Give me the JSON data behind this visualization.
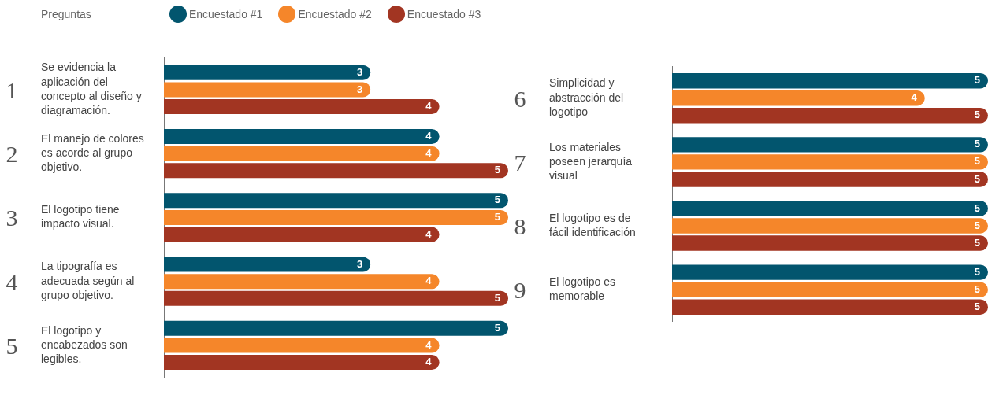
{
  "chart_data": [
    {
      "type": "bar",
      "orientation": "horizontal",
      "legend": "top",
      "legend_title": "Preguntas",
      "data_labels": true,
      "tick_labels": "y",
      "xlim": [
        0,
        5
      ],
      "categories": [
        "Se evidencia la aplicación del concepto al diseño y diagramación.",
        "El manejo de colores es acorde al grupo objetivo.",
        "El logotipo tiene impacto visual.",
        "La tipografía es adecuada según al grupo objetivo.",
        "El logotipo y encabezados son legibles."
      ],
      "annotations": [
        "1",
        "2",
        "3",
        "4",
        "5"
      ],
      "series": [
        {
          "name": "Encuestado #1",
          "color": "#02556e",
          "values": [
            3,
            4,
            5,
            3,
            5
          ]
        },
        {
          "name": "Encuestado #2",
          "color": "#f5862a",
          "values": [
            3,
            4,
            5,
            4,
            4
          ]
        },
        {
          "name": "Encuestado #3",
          "color": "#a23522",
          "values": [
            4,
            5,
            4,
            5,
            4
          ]
        }
      ]
    },
    {
      "type": "bar",
      "orientation": "horizontal",
      "data_labels": true,
      "tick_labels": "y",
      "xlim": [
        0,
        5
      ],
      "categories": [
        "Simplicidad y abstracción del logotipo",
        "Los materiales poseen jerarquía visual",
        "El logotipo es de fácil identificación",
        "El logotipo es memorable"
      ],
      "annotations": [
        "6",
        "7",
        "8",
        "9"
      ],
      "series": [
        {
          "color": "#02556e",
          "values": [
            5,
            5,
            5,
            5
          ]
        },
        {
          "color": "#f5862a",
          "values": [
            4,
            5,
            5,
            5
          ]
        },
        {
          "color": "#a23522",
          "values": [
            5,
            5,
            5,
            5
          ]
        }
      ]
    }
  ]
}
